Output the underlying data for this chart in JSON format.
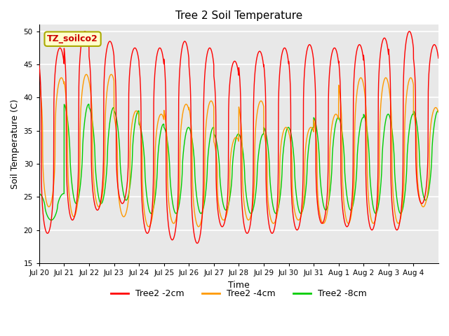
{
  "title": "Tree 2 Soil Temperature",
  "xlabel": "Time",
  "ylabel": "Soil Temperature (C)",
  "ylim": [
    15,
    51
  ],
  "yticks": [
    15,
    20,
    25,
    30,
    35,
    40,
    45,
    50
  ],
  "annotation": "TZ_soilco2",
  "colors": {
    "Tree2 -2cm": "#ff0000",
    "Tree2 -4cm": "#ff9900",
    "Tree2 -8cm": "#00cc00"
  },
  "xtick_labels": [
    "Jul 20",
    "Jul 21",
    "Jul 22",
    "Jul 23",
    "Jul 24",
    "Jul 25",
    "Jul 26",
    "Jul 27",
    "Jul 28",
    "Jul 29",
    "Jul 30",
    "Jul 31",
    "Aug 1",
    "Aug 2",
    "Aug 3",
    "Aug 4"
  ],
  "num_days": 16,
  "samples_per_day": 288,
  "background_color": "#e8e8e8",
  "grid_color": "#ffffff",
  "figsize": [
    6.4,
    4.8
  ],
  "dpi": 100,
  "series": {
    "depth_2cm": {
      "base": 34.0,
      "amplitude": 14.5,
      "phase_shift": 0.0,
      "sharpness": 3.5
    },
    "depth_4cm": {
      "base": 33.0,
      "amplitude": 10.5,
      "phase_shift": 0.055,
      "sharpness": 2.5
    },
    "depth_8cm": {
      "base": 31.0,
      "amplitude": 7.0,
      "phase_shift": 0.15,
      "sharpness": 1.5
    }
  },
  "peak_variations_2cm": [
    47.5,
    50.0,
    48.5,
    47.5,
    47.5,
    48.5,
    47.5,
    45.5,
    47.0,
    47.5,
    48.0,
    47.5,
    48.0,
    49.0,
    50.0,
    48.0
  ],
  "trough_variations_2cm": [
    19.5,
    21.5,
    23.0,
    24.0,
    19.5,
    18.5,
    18.0,
    20.5,
    19.5,
    19.5,
    20.0,
    21.0,
    20.5,
    20.0,
    20.0,
    24.0
  ],
  "peak_variations_4cm": [
    43.0,
    43.5,
    43.5,
    38.0,
    37.5,
    39.0,
    39.5,
    34.0,
    39.5,
    35.5,
    35.5,
    37.5,
    43.0,
    43.0,
    43.0,
    38.5
  ],
  "trough_variations_4cm": [
    23.5,
    22.0,
    23.5,
    22.0,
    20.5,
    21.0,
    20.5,
    21.5,
    21.5,
    21.0,
    21.5,
    21.0,
    21.0,
    21.0,
    21.0,
    23.5
  ],
  "peak_variations_8cm": [
    25.5,
    39.0,
    38.5,
    38.0,
    36.0,
    35.5,
    35.5,
    34.5,
    34.5,
    35.5,
    35.5,
    37.0,
    37.0,
    37.5,
    37.5,
    38.0
  ],
  "trough_variations_8cm": [
    21.5,
    24.0,
    24.0,
    24.5,
    22.5,
    22.5,
    22.5,
    23.0,
    22.5,
    22.5,
    22.5,
    23.0,
    23.0,
    22.5,
    22.5,
    24.5
  ]
}
